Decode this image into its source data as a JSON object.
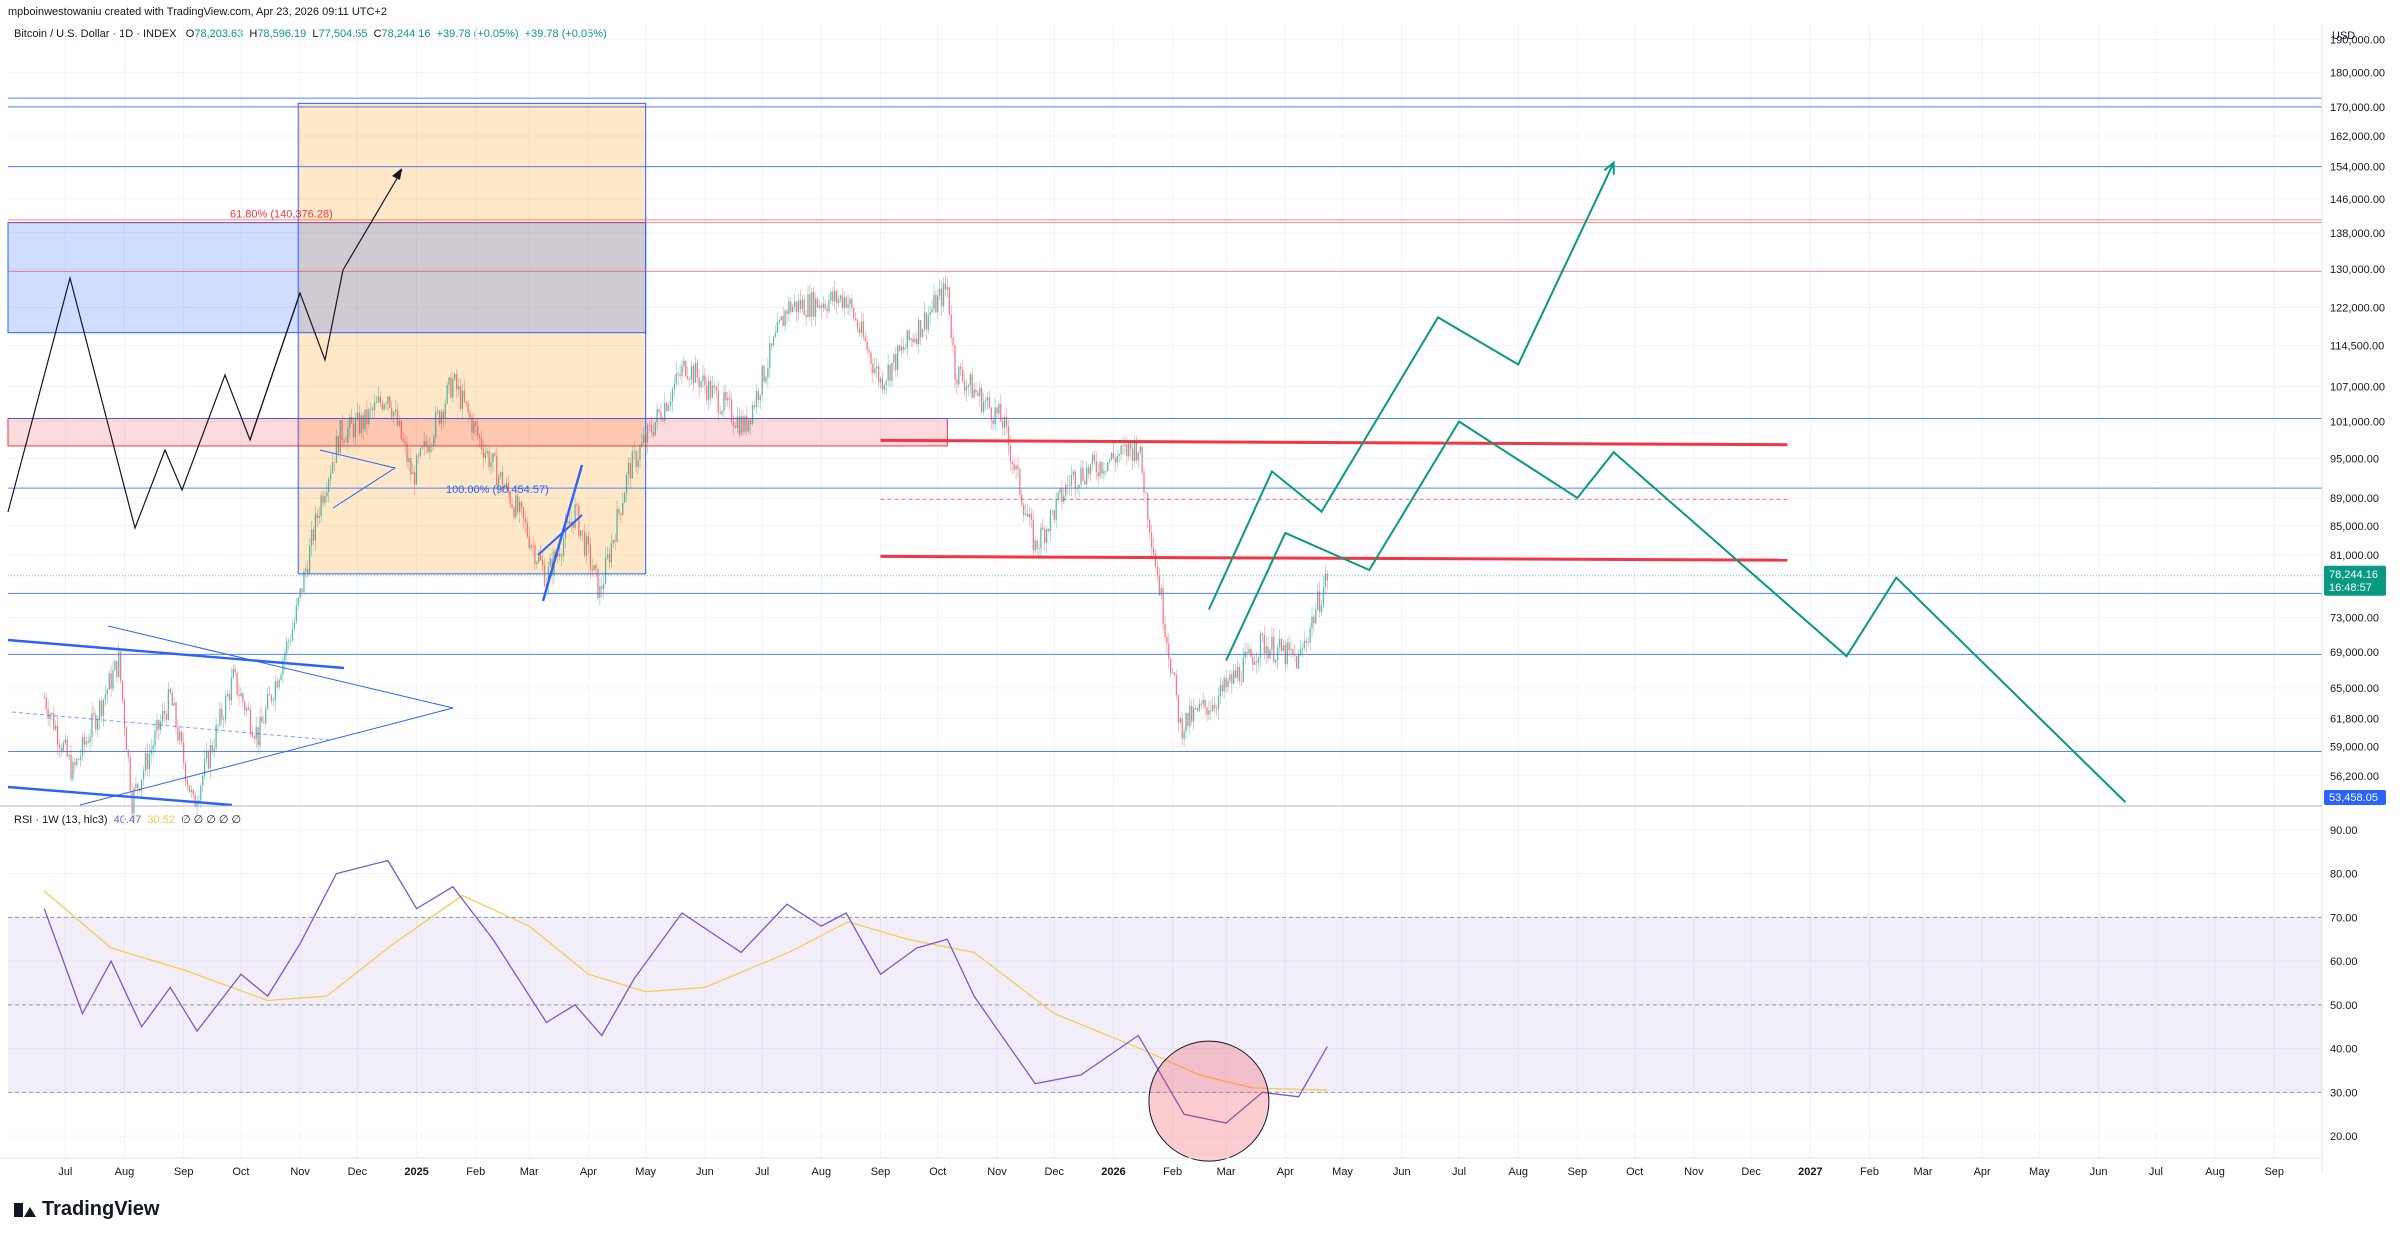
{
  "header": {
    "credit": "mpboinwestowaniu created with TradingView.com, Apr 23, 2026 09:11 UTC+2",
    "currency": "USD",
    "brand": "TradingView"
  },
  "legend": {
    "symbol": "Bitcoin / U.S. Dollar · 1D · INDEX",
    "open_label": "O",
    "open": "78,203.63",
    "high_label": "H",
    "high": "78,596.19",
    "low_label": "L",
    "low": "77,504.55",
    "close_label": "C",
    "close": "78,244.16",
    "change": "+39.78 (+0.05%)",
    "change2": "+39.78 (+0.05%)"
  },
  "rsi_legend": {
    "label": "RSI · 1W (13, hlc3)",
    "value": "40.47",
    "ma_value": "30.52",
    "extras": "∅ ∅ ∅ ∅ ∅"
  },
  "price_axis": {
    "ticks": [
      "190,000.00",
      "180,000.00",
      "170,000.00",
      "162,000.00",
      "154,000.00",
      "146,000.00",
      "138,000.00",
      "130,000.00",
      "122,000.00",
      "114,500.00",
      "107,000.00",
      "101,000.00",
      "95,000.00",
      "89,000.00",
      "85,000.00",
      "81,000.00",
      "73,000.00",
      "69,000.00",
      "65,000.00",
      "61,800.00",
      "59,000.00",
      "56,200.00"
    ],
    "current_price": "78,244.16",
    "countdown": "16:48:57",
    "bottom_label": "53,458.05"
  },
  "rsi_axis": {
    "ticks": [
      "90.00",
      "80.00",
      "70.00",
      "60.00",
      "50.00",
      "40.00",
      "30.00",
      "20.00"
    ]
  },
  "time_axis": {
    "labels": [
      {
        "t": "Jul",
        "bold": false
      },
      {
        "t": "Aug",
        "bold": false
      },
      {
        "t": "Sep",
        "bold": false
      },
      {
        "t": "Oct",
        "bold": false
      },
      {
        "t": "Nov",
        "bold": false
      },
      {
        "t": "Dec",
        "bold": false
      },
      {
        "t": "2025",
        "bold": true
      },
      {
        "t": "Feb",
        "bold": false
      },
      {
        "t": "Mar",
        "bold": false
      },
      {
        "t": "Apr",
        "bold": false
      },
      {
        "t": "May",
        "bold": false
      },
      {
        "t": "Jun",
        "bold": false
      },
      {
        "t": "Jul",
        "bold": false
      },
      {
        "t": "Aug",
        "bold": false
      },
      {
        "t": "Sep",
        "bold": false
      },
      {
        "t": "Oct",
        "bold": false
      },
      {
        "t": "Nov",
        "bold": false
      },
      {
        "t": "Dec",
        "bold": false
      },
      {
        "t": "2026",
        "bold": true
      },
      {
        "t": "Feb",
        "bold": false
      },
      {
        "t": "Mar",
        "bold": false
      },
      {
        "t": "Apr",
        "bold": false
      },
      {
        "t": "May",
        "bold": false
      },
      {
        "t": "Jun",
        "bold": false
      },
      {
        "t": "Jul",
        "bold": false
      },
      {
        "t": "Aug",
        "bold": false
      },
      {
        "t": "Sep",
        "bold": false
      },
      {
        "t": "Oct",
        "bold": false
      },
      {
        "t": "Nov",
        "bold": false
      },
      {
        "t": "Dec",
        "bold": false
      },
      {
        "t": "2027",
        "bold": true
      },
      {
        "t": "Feb",
        "bold": false
      },
      {
        "t": "Mar",
        "bold": false
      },
      {
        "t": "Apr",
        "bold": false
      },
      {
        "t": "May",
        "bold": false
      },
      {
        "t": "Jun",
        "bold": false
      },
      {
        "t": "Jul",
        "bold": false
      },
      {
        "t": "Aug",
        "bold": false
      },
      {
        "t": "Sep",
        "bold": false
      }
    ]
  },
  "annotations": {
    "fib_618": "61.80% (140,376.28)",
    "fib_100": "100.00% (90,454.57)"
  },
  "colors": {
    "up": "#089981",
    "down": "#f23645",
    "projection": "#089981",
    "level_line": "#2962ff",
    "rsi_line": "#7e57c2",
    "rsi_ma": "#f7c948",
    "rsi_band": "#7e57c2",
    "orange_box": "#ff9800",
    "red_zone": "#f23645",
    "blue_zone": "#2962ff"
  },
  "chart_data": [
    {
      "type": "candlestick",
      "symbol": "Bitcoin / U.S. Dollar",
      "interval": "1D",
      "y_scale": "log",
      "ylim": [
        53458,
        195000
      ],
      "x_range": [
        "2024-06",
        "2027-09"
      ],
      "price_path": [
        {
          "date": "2024-06-20",
          "close": 64000
        },
        {
          "date": "2024-07-05",
          "close": 56500
        },
        {
          "date": "2024-07-29",
          "close": 68000
        },
        {
          "date": "2024-08-05",
          "close": 54000
        },
        {
          "date": "2024-08-25",
          "close": 64000
        },
        {
          "date": "2024-09-06",
          "close": 53500
        },
        {
          "date": "2024-09-27",
          "close": 66000
        },
        {
          "date": "2024-10-10",
          "close": 60000
        },
        {
          "date": "2024-10-29",
          "close": 72500
        },
        {
          "date": "2024-11-12",
          "close": 89000
        },
        {
          "date": "2024-11-22",
          "close": 99000
        },
        {
          "date": "2024-12-05",
          "close": 101000
        },
        {
          "date": "2024-12-17",
          "close": 106000
        },
        {
          "date": "2024-12-30",
          "close": 92000
        },
        {
          "date": "2025-01-20",
          "close": 108000
        },
        {
          "date": "2025-02-03",
          "close": 98000
        },
        {
          "date": "2025-02-25",
          "close": 86000
        },
        {
          "date": "2025-03-10",
          "close": 78000
        },
        {
          "date": "2025-03-25",
          "close": 87000
        },
        {
          "date": "2025-04-07",
          "close": 76000
        },
        {
          "date": "2025-04-22",
          "close": 93000
        },
        {
          "date": "2025-05-22",
          "close": 111000
        },
        {
          "date": "2025-06-22",
          "close": 100000
        },
        {
          "date": "2025-07-14",
          "close": 122000
        },
        {
          "date": "2025-08-14",
          "close": 124000
        },
        {
          "date": "2025-09-01",
          "close": 108000
        },
        {
          "date": "2025-10-06",
          "close": 126000
        },
        {
          "date": "2025-10-10",
          "close": 110000
        },
        {
          "date": "2025-11-04",
          "close": 101000
        },
        {
          "date": "2025-11-21",
          "close": 82000
        },
        {
          "date": "2025-12-10",
          "close": 92000
        },
        {
          "date": "2026-01-14",
          "close": 97000
        },
        {
          "date": "2026-02-05",
          "close": 61000
        },
        {
          "date": "2026-02-25",
          "close": 64000
        },
        {
          "date": "2026-03-20",
          "close": 70000
        },
        {
          "date": "2026-04-08",
          "close": 68000
        },
        {
          "date": "2026-04-23",
          "close": 78244.16
        }
      ],
      "price_levels": [
        170000,
        154000,
        140376.28,
        129500,
        101000,
        90454.57,
        76000,
        68500,
        58500
      ],
      "resistance_lines_red": [
        97500,
        80500
      ],
      "projection_paths": [
        [
          {
            "date": "2026-02-20",
            "price": 74000
          },
          {
            "date": "2026-03-25",
            "price": 93000
          },
          {
            "date": "2026-04-20",
            "price": 87000
          },
          {
            "date": "2026-06-20",
            "price": 120000
          },
          {
            "date": "2026-08-01",
            "price": 111000
          },
          {
            "date": "2026-09-20",
            "price": 155000
          }
        ],
        [
          {
            "date": "2026-03-01",
            "price": 68000
          },
          {
            "date": "2026-04-01",
            "price": 84000
          },
          {
            "date": "2026-05-15",
            "price": 79000
          },
          {
            "date": "2026-07-01",
            "price": 101000
          },
          {
            "date": "2026-09-01",
            "price": 89000
          },
          {
            "date": "2026-09-20",
            "price": 96000
          },
          {
            "date": "2027-01-20",
            "price": 68500
          },
          {
            "date": "2027-02-15",
            "price": 78000
          },
          {
            "date": "2027-06-15",
            "price": 53800
          }
        ]
      ]
    },
    {
      "type": "line",
      "title": "RSI · 1W (13, hlc3)",
      "ylim": [
        15,
        95
      ],
      "bands": [
        30,
        50,
        70
      ],
      "series": [
        {
          "name": "RSI",
          "values": [
            {
              "date": "2024-06-20",
              "v": 72
            },
            {
              "date": "2024-07-10",
              "v": 48
            },
            {
              "date": "2024-07-25",
              "v": 60
            },
            {
              "date": "2024-08-10",
              "v": 45
            },
            {
              "date": "2024-08-25",
              "v": 54
            },
            {
              "date": "2024-09-08",
              "v": 44
            },
            {
              "date": "2024-10-01",
              "v": 57
            },
            {
              "date": "2024-10-15",
              "v": 52
            },
            {
              "date": "2024-11-01",
              "v": 64
            },
            {
              "date": "2024-11-20",
              "v": 80
            },
            {
              "date": "2024-12-17",
              "v": 83
            },
            {
              "date": "2025-01-01",
              "v": 72
            },
            {
              "date": "2025-01-20",
              "v": 77
            },
            {
              "date": "2025-02-10",
              "v": 65
            },
            {
              "date": "2025-03-10",
              "v": 46
            },
            {
              "date": "2025-03-25",
              "v": 50
            },
            {
              "date": "2025-04-08",
              "v": 43
            },
            {
              "date": "2025-04-25",
              "v": 56
            },
            {
              "date": "2025-05-20",
              "v": 71
            },
            {
              "date": "2025-06-20",
              "v": 62
            },
            {
              "date": "2025-07-14",
              "v": 73
            },
            {
              "date": "2025-08-01",
              "v": 68
            },
            {
              "date": "2025-08-14",
              "v": 71
            },
            {
              "date": "2025-09-01",
              "v": 57
            },
            {
              "date": "2025-09-20",
              "v": 63
            },
            {
              "date": "2025-10-06",
              "v": 65
            },
            {
              "date": "2025-10-20",
              "v": 52
            },
            {
              "date": "2025-11-21",
              "v": 32
            },
            {
              "date": "2025-12-15",
              "v": 34
            },
            {
              "date": "2026-01-14",
              "v": 43
            },
            {
              "date": "2026-02-07",
              "v": 25
            },
            {
              "date": "2026-03-01",
              "v": 23
            },
            {
              "date": "2026-03-20",
              "v": 30
            },
            {
              "date": "2026-04-08",
              "v": 29
            },
            {
              "date": "2026-04-23",
              "v": 40.47
            }
          ]
        },
        {
          "name": "MA",
          "values": [
            {
              "date": "2024-06-20",
              "v": 76
            },
            {
              "date": "2024-07-25",
              "v": 63
            },
            {
              "date": "2024-09-01",
              "v": 58
            },
            {
              "date": "2024-10-15",
              "v": 51
            },
            {
              "date": "2024-11-15",
              "v": 52
            },
            {
              "date": "2024-12-20",
              "v": 64
            },
            {
              "date": "2025-01-25",
              "v": 75
            },
            {
              "date": "2025-03-01",
              "v": 68
            },
            {
              "date": "2025-04-01",
              "v": 57
            },
            {
              "date": "2025-05-01",
              "v": 53
            },
            {
              "date": "2025-06-01",
              "v": 54
            },
            {
              "date": "2025-07-15",
              "v": 62
            },
            {
              "date": "2025-08-15",
              "v": 69
            },
            {
              "date": "2025-09-15",
              "v": 65
            },
            {
              "date": "2025-10-20",
              "v": 62
            },
            {
              "date": "2025-12-01",
              "v": 48
            },
            {
              "date": "2026-01-15",
              "v": 40
            },
            {
              "date": "2026-02-15",
              "v": 34
            },
            {
              "date": "2026-03-15",
              "v": 31
            },
            {
              "date": "2026-04-23",
              "v": 30.52
            }
          ]
        }
      ]
    }
  ]
}
